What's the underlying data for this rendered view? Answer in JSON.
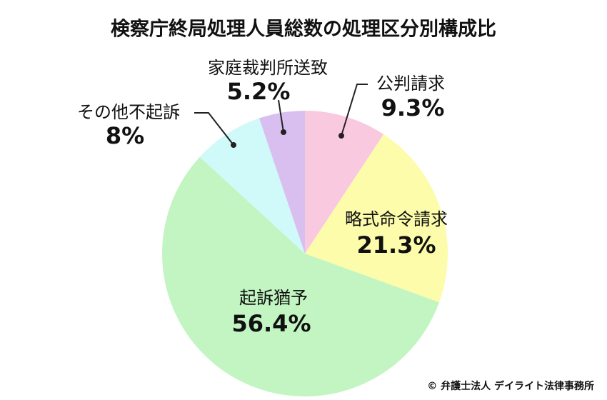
{
  "chart_data": {
    "type": "pie",
    "title": "検察庁終局処理人員総数の処理区分別構成比",
    "categories": [
      "公判請求",
      "略式命令請求",
      "起訴猶予",
      "その他不起訴",
      "家庭裁判所送致"
    ],
    "values": [
      9.3,
      21.3,
      56.4,
      8,
      5.2
    ],
    "value_labels": [
      "9.3%",
      "21.3%",
      "56.4%",
      "8%",
      "5.2%"
    ],
    "colors": [
      "#f9c9df",
      "#fcfcab",
      "#c2f5c2",
      "#d0f9f9",
      "#d9bff0"
    ],
    "credit": "© 弁護士法人 デイライト法律事務所"
  }
}
